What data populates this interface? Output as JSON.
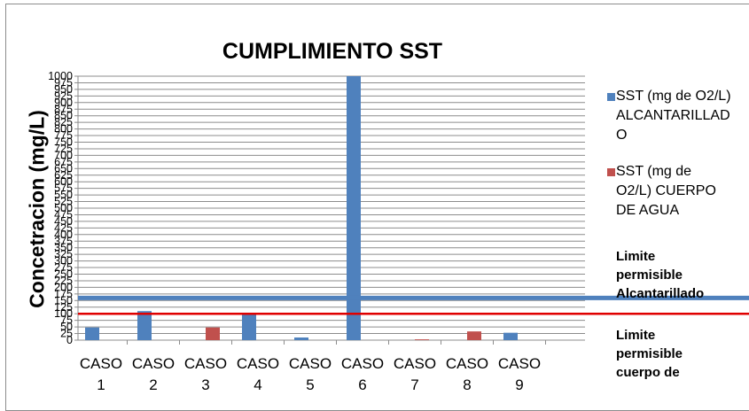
{
  "chart_data": {
    "type": "bar",
    "title": "CUMPLIMIENTO SST",
    "ylabel": "Concetracion (mg/L)",
    "xlabel": "",
    "ylim": [
      0,
      1000
    ],
    "yticks": [
      0,
      25,
      50,
      75,
      100,
      125,
      150,
      175,
      200,
      225,
      250,
      275,
      300,
      325,
      350,
      375,
      400,
      425,
      450,
      475,
      500,
      525,
      550,
      575,
      600,
      625,
      650,
      675,
      700,
      725,
      750,
      775,
      800,
      825,
      850,
      875,
      900,
      925,
      950,
      975,
      1000
    ],
    "categories": [
      [
        "CASO",
        "1"
      ],
      [
        "CASO",
        "2"
      ],
      [
        "CASO",
        "3"
      ],
      [
        "CASO",
        "4"
      ],
      [
        "CASO",
        "5"
      ],
      [
        "CASO",
        "6"
      ],
      [
        "CASO",
        "7"
      ],
      [
        "CASO",
        "8"
      ],
      [
        "CASO",
        "9"
      ]
    ],
    "series": [
      {
        "name": "SST (mg de O2/L) ALCANTARILLADO",
        "legend_lines": [
          "SST (mg de O2/L)",
          "ALCANTARILLAD",
          "O"
        ],
        "color": "#4f81bd",
        "values": [
          48,
          110,
          0,
          98,
          10,
          1000,
          0,
          0,
          28
        ]
      },
      {
        "name": "SST (mg de O2/L) CUERPO DE AGUA",
        "legend_lines": [
          "SST (mg de",
          "O2/L) CUERPO",
          "DE AGUA"
        ],
        "color": "#c0504d",
        "values": [
          0,
          0,
          48,
          0,
          0,
          0,
          3,
          33,
          0
        ]
      }
    ],
    "reference_lines": [
      {
        "name": "Limite permisible Alcantarillado",
        "legend_lines": [
          "Limite",
          "permisible",
          "Alcantarillado"
        ],
        "value": 160,
        "color": "#4f81bd"
      },
      {
        "name": "Limite permisible cuerpo de",
        "legend_lines": [
          "Limite",
          "permisible",
          "cuerpo de"
        ],
        "value": 100,
        "color": "#e00000"
      }
    ],
    "grid": true,
    "legend_position": "right"
  }
}
